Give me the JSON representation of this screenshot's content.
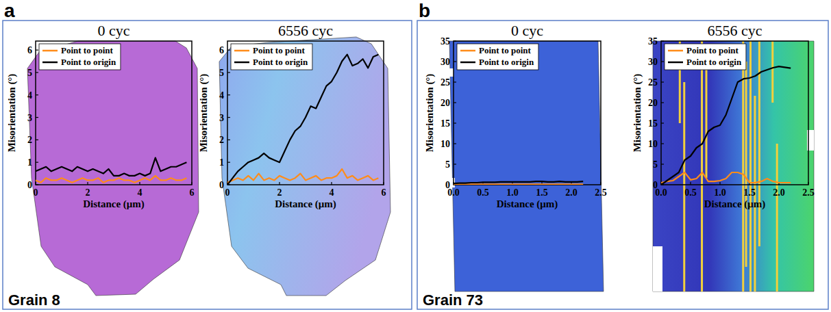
{
  "panels": [
    {
      "letter": "a",
      "label": "Grain 8"
    },
    {
      "letter": "b",
      "label": "Grain 73"
    }
  ],
  "chart_data": [
    {
      "type": "line",
      "title": "0 cyc",
      "x_label": "Distance (μm)",
      "y_label": "Misorientation (°)",
      "xlim": [
        0,
        6
      ],
      "ylim": [
        0,
        6.4
      ],
      "xticks": [
        0,
        2,
        4,
        6
      ],
      "yticks": [
        0,
        1,
        2,
        3,
        4,
        5,
        6
      ],
      "legend": "upper left",
      "x": [
        0,
        0.2,
        0.4,
        0.6,
        0.8,
        1.0,
        1.2,
        1.4,
        1.6,
        1.8,
        2.0,
        2.2,
        2.4,
        2.6,
        2.8,
        3.0,
        3.2,
        3.4,
        3.6,
        3.8,
        4.0,
        4.2,
        4.4,
        4.6,
        4.8,
        5.0,
        5.2,
        5.4,
        5.6,
        5.8
      ],
      "series": [
        {
          "name": "Point to point",
          "color": "#ff8c1a",
          "values": [
            0.2,
            0.1,
            0.3,
            0.2,
            0.2,
            0.3,
            0.2,
            0.1,
            0.2,
            0.3,
            0.2,
            0.2,
            0.3,
            0.1,
            0.2,
            0.2,
            0.3,
            0.2,
            0.2,
            0.1,
            0.2,
            0.3,
            0.2,
            0.4,
            0.2,
            0.2,
            0.3,
            0.2,
            0.2,
            0.3
          ]
        },
        {
          "name": "Point to origin",
          "color": "#000000",
          "values": [
            0.6,
            0.7,
            0.8,
            0.6,
            0.7,
            0.8,
            0.7,
            0.6,
            0.8,
            0.7,
            0.6,
            0.7,
            0.6,
            0.5,
            0.7,
            0.4,
            0.4,
            0.5,
            0.4,
            0.4,
            0.5,
            0.4,
            0.5,
            1.2,
            0.6,
            0.7,
            0.8,
            0.8,
            0.9,
            1.0
          ]
        }
      ]
    },
    {
      "type": "line",
      "title": "6556 cyc",
      "x_label": "Distance (μm)",
      "y_label": "Misorientation (°)",
      "xlim": [
        0,
        6
      ],
      "ylim": [
        0,
        6.4
      ],
      "xticks": [
        0,
        2,
        4,
        6
      ],
      "yticks": [
        0,
        1,
        2,
        3,
        4,
        5,
        6
      ],
      "legend": "upper left",
      "x": [
        0,
        0.2,
        0.4,
        0.6,
        0.8,
        1.0,
        1.2,
        1.4,
        1.6,
        1.8,
        2.0,
        2.2,
        2.4,
        2.6,
        2.8,
        3.0,
        3.2,
        3.4,
        3.6,
        3.8,
        4.0,
        4.2,
        4.4,
        4.6,
        4.8,
        5.0,
        5.2,
        5.4,
        5.6,
        5.8
      ],
      "series": [
        {
          "name": "Point to point",
          "color": "#ff8c1a",
          "values": [
            0.1,
            0.2,
            0.3,
            0.2,
            0.4,
            0.2,
            0.5,
            0.2,
            0.3,
            0.2,
            0.4,
            0.3,
            0.2,
            0.3,
            0.5,
            0.2,
            0.3,
            0.4,
            0.2,
            0.3,
            0.3,
            0.4,
            0.7,
            0.3,
            0.4,
            0.2,
            0.3,
            0.4,
            0.2,
            0.3
          ]
        },
        {
          "name": "Point to origin",
          "color": "#000000",
          "values": [
            0,
            0.3,
            0.6,
            0.8,
            1.0,
            1.1,
            1.2,
            1.4,
            1.2,
            1.1,
            1.0,
            1.5,
            2.0,
            2.4,
            2.6,
            3.0,
            3.5,
            3.4,
            3.9,
            4.4,
            4.6,
            5.0,
            5.5,
            5.8,
            5.3,
            5.4,
            5.6,
            5.2,
            5.7,
            5.8
          ]
        }
      ]
    },
    {
      "type": "line",
      "title": "0 cyc",
      "x_label": "Distance (μm)",
      "y_label": "Misorientation (°)",
      "xlim": [
        0,
        2.5
      ],
      "ylim": [
        0,
        35
      ],
      "xticks": [
        {
          "value": 0,
          "label": "0.0"
        },
        0.5,
        {
          "value": 1,
          "label": "1.0"
        },
        1.5,
        {
          "value": 2,
          "label": "2.0"
        },
        2.5
      ],
      "yticks": [
        0,
        5,
        10,
        15,
        20,
        25,
        30,
        35
      ],
      "legend": "upper left",
      "x": [
        0,
        0.1,
        0.2,
        0.3,
        0.4,
        0.5,
        0.6,
        0.7,
        0.8,
        0.9,
        1.0,
        1.1,
        1.2,
        1.3,
        1.4,
        1.5,
        1.6,
        1.7,
        1.8,
        1.9,
        2.0,
        2.1,
        2.2
      ],
      "series": [
        {
          "name": "Point to point",
          "color": "#ff8c1a",
          "values": [
            0.1,
            0.1,
            0.1,
            0.1,
            0.1,
            0.1,
            0.1,
            0.1,
            0.1,
            0.1,
            0.1,
            0.1,
            0.1,
            0.1,
            0.1,
            0.1,
            0.1,
            0.1,
            0.1,
            0.1,
            0.1,
            0.1,
            0.1
          ]
        },
        {
          "name": "Point to origin",
          "color": "#000000",
          "values": [
            0.3,
            0.4,
            0.4,
            0.5,
            0.5,
            0.6,
            0.6,
            0.6,
            0.7,
            0.7,
            0.7,
            0.7,
            0.7,
            0.7,
            0.8,
            0.8,
            0.7,
            0.7,
            0.8,
            0.7,
            0.7,
            0.7,
            0.8
          ]
        }
      ]
    },
    {
      "type": "line",
      "title": "6556 cyc",
      "x_label": "Distance (μm)",
      "y_label": "Misorientation (°)",
      "xlim": [
        0,
        2.5
      ],
      "ylim": [
        0,
        35
      ],
      "xticks": [
        {
          "value": 0,
          "label": "0.0"
        },
        0.5,
        {
          "value": 1,
          "label": "1.0"
        },
        1.5,
        {
          "value": 2,
          "label": "2.0"
        },
        2.5
      ],
      "yticks": [
        0,
        5,
        10,
        15,
        20,
        25,
        30,
        35
      ],
      "legend": "upper left",
      "x": [
        0,
        0.1,
        0.2,
        0.3,
        0.4,
        0.5,
        0.6,
        0.7,
        0.8,
        0.9,
        1.0,
        1.1,
        1.2,
        1.3,
        1.4,
        1.5,
        1.6,
        1.7,
        1.8,
        1.9,
        2.0,
        2.1,
        2.2
      ],
      "series": [
        {
          "name": "Point to point",
          "color": "#ff8c1a",
          "values": [
            0.5,
            0.8,
            1.0,
            2.0,
            3.0,
            1.2,
            1.5,
            3.0,
            0.8,
            0.8,
            1.0,
            1.5,
            3.0,
            3.0,
            2.5,
            0.5,
            0.5,
            0.8,
            1.5,
            0.8,
            0.5,
            0.5,
            0.5
          ]
        },
        {
          "name": "Point to origin",
          "color": "#000000",
          "values": [
            0,
            1,
            2,
            3,
            6,
            7,
            9,
            10,
            13,
            14,
            14.5,
            17,
            21,
            25,
            25.8,
            26,
            26.5,
            27.5,
            28,
            28.5,
            28.8,
            28.6,
            28.4
          ]
        }
      ]
    }
  ]
}
